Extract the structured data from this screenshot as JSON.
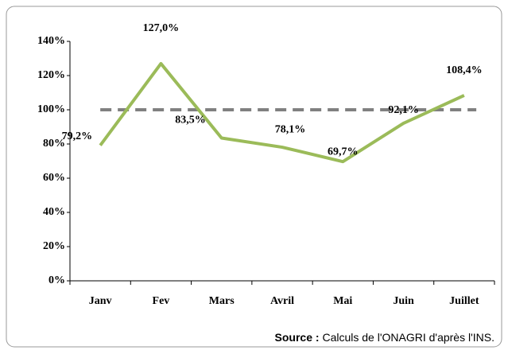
{
  "chart_data": {
    "type": "line",
    "categories": [
      "Janv",
      "Fev",
      "Mars",
      "Avril",
      "Mai",
      "Juin",
      "Juillet"
    ],
    "series": [
      {
        "color": "#9bbb59",
        "values": [
          79.2,
          127.0,
          83.5,
          78.1,
          69.7,
          92.1,
          108.4
        ],
        "value_labels": [
          "79,2%",
          "127,0%",
          "83,5%",
          "78,1%",
          "69,7%",
          "92,1%",
          "108,4%"
        ]
      }
    ],
    "reference_line": {
      "value": 100,
      "color": "#808080",
      "style": "dashed"
    },
    "ylim": [
      0,
      140
    ],
    "yticks": [
      {
        "value": 0,
        "label": "0%"
      },
      {
        "value": 20,
        "label": "20%"
      },
      {
        "value": 40,
        "label": "40%"
      },
      {
        "value": 60,
        "label": "60%"
      },
      {
        "value": 80,
        "label": "80%"
      },
      {
        "value": 100,
        "label": "100%"
      },
      {
        "value": 120,
        "label": "120%"
      },
      {
        "value": 140,
        "label": "140%"
      }
    ],
    "grid": false
  },
  "source": {
    "label": "Source :",
    "text": "Calculs de l'ONAGRI d'après l'INS."
  }
}
